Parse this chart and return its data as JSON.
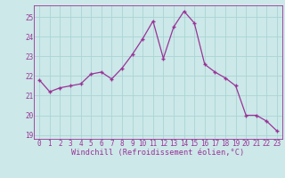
{
  "x": [
    0,
    1,
    2,
    3,
    4,
    5,
    6,
    7,
    8,
    9,
    10,
    11,
    12,
    13,
    14,
    15,
    16,
    17,
    18,
    19,
    20,
    21,
    22,
    23
  ],
  "y": [
    21.8,
    21.2,
    21.4,
    21.5,
    21.6,
    22.1,
    22.2,
    21.85,
    22.4,
    23.1,
    23.9,
    24.8,
    22.9,
    24.5,
    25.3,
    24.7,
    22.6,
    22.2,
    21.9,
    21.5,
    20.0,
    20.0,
    19.7,
    19.2
  ],
  "line_color": "#993399",
  "marker_color": "#993399",
  "bg_color": "#cce8e8",
  "grid_color": "#aad4d4",
  "xlabel": "Windchill (Refroidissement éolien,°C)",
  "xlabel_color": "#993399",
  "tick_color": "#993399",
  "label_color": "#993399",
  "ylim": [
    18.8,
    25.6
  ],
  "xlim": [
    -0.5,
    23.5
  ],
  "yticks": [
    19,
    20,
    21,
    22,
    23,
    24,
    25
  ],
  "xticks": [
    0,
    1,
    2,
    3,
    4,
    5,
    6,
    7,
    8,
    9,
    10,
    11,
    12,
    13,
    14,
    15,
    16,
    17,
    18,
    19,
    20,
    21,
    22,
    23
  ],
  "tick_fontsize": 5.5,
  "xlabel_fontsize": 6.2
}
